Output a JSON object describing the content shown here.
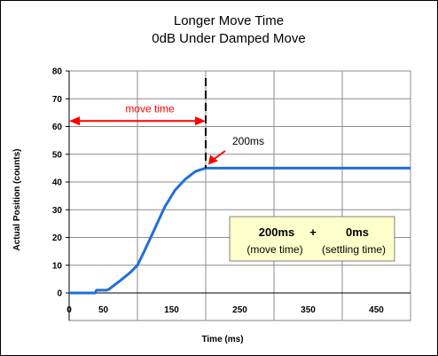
{
  "chart_data": {
    "type": "line",
    "title": "Longer Move Time",
    "subtitle": "0dB Under Damped Move",
    "xlabel": "Time (ms)",
    "ylabel": "Actual Position (counts)",
    "xlim": [
      0,
      500
    ],
    "ylim": [
      0,
      80
    ],
    "xticks": [
      0,
      50,
      150,
      250,
      350,
      450
    ],
    "xgrid": [
      0,
      100,
      200,
      300,
      400,
      500
    ],
    "yticks": [
      0,
      10,
      20,
      30,
      40,
      50,
      60,
      70,
      80
    ],
    "grid": true,
    "line_color": "#1f6fd9",
    "series": [
      {
        "x": [
          0,
          38,
          40,
          55,
          58,
          75,
          90,
          100,
          110,
          125,
          140,
          155,
          170,
          185,
          195,
          200,
          210,
          250,
          300,
          350,
          400,
          450,
          500
        ],
        "y": [
          0,
          0,
          1,
          1,
          1.3,
          4.5,
          7.5,
          10,
          15,
          23,
          31,
          37,
          41,
          43.8,
          44.6,
          45,
          45,
          45,
          45,
          45,
          45,
          45,
          45
        ]
      }
    ],
    "annotations": {
      "move_time_label": "move time",
      "move_time_range": [
        0,
        200
      ],
      "move_time_y": 62,
      "move_time_color": "#ff0000",
      "marker_label": "200ms",
      "marker_x": 200,
      "arrow_color": "#ff0000"
    },
    "infobox": {
      "move_value": "200ms",
      "plus": "+",
      "settle_value": "0ms",
      "move_caption": "(move time)",
      "settle_caption": "(settling time)",
      "background": "#ffffcc"
    }
  }
}
